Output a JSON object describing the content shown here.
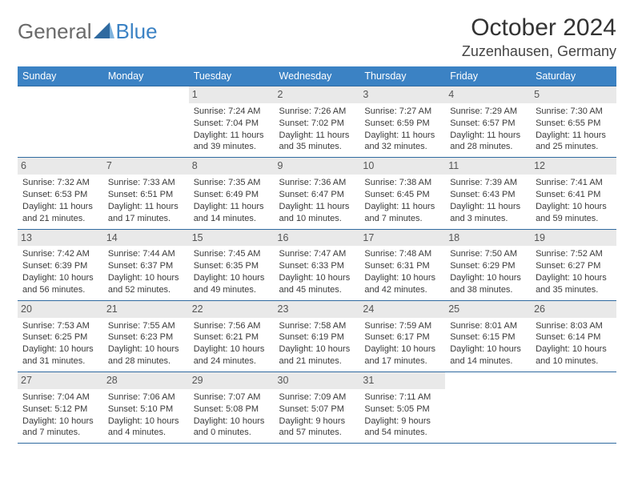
{
  "logo": {
    "text1": "General",
    "text2": "Blue"
  },
  "title": "October 2024",
  "location": "Zuzenhausen, Germany",
  "colors": {
    "header_bg": "#3b82c4",
    "header_text": "#ffffff",
    "border": "#2f6aa0",
    "daynum_bg": "#e9e9e9",
    "body_text": "#3a3a3a"
  },
  "weekdays": [
    "Sunday",
    "Monday",
    "Tuesday",
    "Wednesday",
    "Thursday",
    "Friday",
    "Saturday"
  ],
  "weeks": [
    [
      null,
      null,
      {
        "n": "1",
        "sr": "Sunrise: 7:24 AM",
        "ss": "Sunset: 7:04 PM",
        "d1": "Daylight: 11 hours",
        "d2": "and 39 minutes."
      },
      {
        "n": "2",
        "sr": "Sunrise: 7:26 AM",
        "ss": "Sunset: 7:02 PM",
        "d1": "Daylight: 11 hours",
        "d2": "and 35 minutes."
      },
      {
        "n": "3",
        "sr": "Sunrise: 7:27 AM",
        "ss": "Sunset: 6:59 PM",
        "d1": "Daylight: 11 hours",
        "d2": "and 32 minutes."
      },
      {
        "n": "4",
        "sr": "Sunrise: 7:29 AM",
        "ss": "Sunset: 6:57 PM",
        "d1": "Daylight: 11 hours",
        "d2": "and 28 minutes."
      },
      {
        "n": "5",
        "sr": "Sunrise: 7:30 AM",
        "ss": "Sunset: 6:55 PM",
        "d1": "Daylight: 11 hours",
        "d2": "and 25 minutes."
      }
    ],
    [
      {
        "n": "6",
        "sr": "Sunrise: 7:32 AM",
        "ss": "Sunset: 6:53 PM",
        "d1": "Daylight: 11 hours",
        "d2": "and 21 minutes."
      },
      {
        "n": "7",
        "sr": "Sunrise: 7:33 AM",
        "ss": "Sunset: 6:51 PM",
        "d1": "Daylight: 11 hours",
        "d2": "and 17 minutes."
      },
      {
        "n": "8",
        "sr": "Sunrise: 7:35 AM",
        "ss": "Sunset: 6:49 PM",
        "d1": "Daylight: 11 hours",
        "d2": "and 14 minutes."
      },
      {
        "n": "9",
        "sr": "Sunrise: 7:36 AM",
        "ss": "Sunset: 6:47 PM",
        "d1": "Daylight: 11 hours",
        "d2": "and 10 minutes."
      },
      {
        "n": "10",
        "sr": "Sunrise: 7:38 AM",
        "ss": "Sunset: 6:45 PM",
        "d1": "Daylight: 11 hours",
        "d2": "and 7 minutes."
      },
      {
        "n": "11",
        "sr": "Sunrise: 7:39 AM",
        "ss": "Sunset: 6:43 PM",
        "d1": "Daylight: 11 hours",
        "d2": "and 3 minutes."
      },
      {
        "n": "12",
        "sr": "Sunrise: 7:41 AM",
        "ss": "Sunset: 6:41 PM",
        "d1": "Daylight: 10 hours",
        "d2": "and 59 minutes."
      }
    ],
    [
      {
        "n": "13",
        "sr": "Sunrise: 7:42 AM",
        "ss": "Sunset: 6:39 PM",
        "d1": "Daylight: 10 hours",
        "d2": "and 56 minutes."
      },
      {
        "n": "14",
        "sr": "Sunrise: 7:44 AM",
        "ss": "Sunset: 6:37 PM",
        "d1": "Daylight: 10 hours",
        "d2": "and 52 minutes."
      },
      {
        "n": "15",
        "sr": "Sunrise: 7:45 AM",
        "ss": "Sunset: 6:35 PM",
        "d1": "Daylight: 10 hours",
        "d2": "and 49 minutes."
      },
      {
        "n": "16",
        "sr": "Sunrise: 7:47 AM",
        "ss": "Sunset: 6:33 PM",
        "d1": "Daylight: 10 hours",
        "d2": "and 45 minutes."
      },
      {
        "n": "17",
        "sr": "Sunrise: 7:48 AM",
        "ss": "Sunset: 6:31 PM",
        "d1": "Daylight: 10 hours",
        "d2": "and 42 minutes."
      },
      {
        "n": "18",
        "sr": "Sunrise: 7:50 AM",
        "ss": "Sunset: 6:29 PM",
        "d1": "Daylight: 10 hours",
        "d2": "and 38 minutes."
      },
      {
        "n": "19",
        "sr": "Sunrise: 7:52 AM",
        "ss": "Sunset: 6:27 PM",
        "d1": "Daylight: 10 hours",
        "d2": "and 35 minutes."
      }
    ],
    [
      {
        "n": "20",
        "sr": "Sunrise: 7:53 AM",
        "ss": "Sunset: 6:25 PM",
        "d1": "Daylight: 10 hours",
        "d2": "and 31 minutes."
      },
      {
        "n": "21",
        "sr": "Sunrise: 7:55 AM",
        "ss": "Sunset: 6:23 PM",
        "d1": "Daylight: 10 hours",
        "d2": "and 28 minutes."
      },
      {
        "n": "22",
        "sr": "Sunrise: 7:56 AM",
        "ss": "Sunset: 6:21 PM",
        "d1": "Daylight: 10 hours",
        "d2": "and 24 minutes."
      },
      {
        "n": "23",
        "sr": "Sunrise: 7:58 AM",
        "ss": "Sunset: 6:19 PM",
        "d1": "Daylight: 10 hours",
        "d2": "and 21 minutes."
      },
      {
        "n": "24",
        "sr": "Sunrise: 7:59 AM",
        "ss": "Sunset: 6:17 PM",
        "d1": "Daylight: 10 hours",
        "d2": "and 17 minutes."
      },
      {
        "n": "25",
        "sr": "Sunrise: 8:01 AM",
        "ss": "Sunset: 6:15 PM",
        "d1": "Daylight: 10 hours",
        "d2": "and 14 minutes."
      },
      {
        "n": "26",
        "sr": "Sunrise: 8:03 AM",
        "ss": "Sunset: 6:14 PM",
        "d1": "Daylight: 10 hours",
        "d2": "and 10 minutes."
      }
    ],
    [
      {
        "n": "27",
        "sr": "Sunrise: 7:04 AM",
        "ss": "Sunset: 5:12 PM",
        "d1": "Daylight: 10 hours",
        "d2": "and 7 minutes."
      },
      {
        "n": "28",
        "sr": "Sunrise: 7:06 AM",
        "ss": "Sunset: 5:10 PM",
        "d1": "Daylight: 10 hours",
        "d2": "and 4 minutes."
      },
      {
        "n": "29",
        "sr": "Sunrise: 7:07 AM",
        "ss": "Sunset: 5:08 PM",
        "d1": "Daylight: 10 hours",
        "d2": "and 0 minutes."
      },
      {
        "n": "30",
        "sr": "Sunrise: 7:09 AM",
        "ss": "Sunset: 5:07 PM",
        "d1": "Daylight: 9 hours",
        "d2": "and 57 minutes."
      },
      {
        "n": "31",
        "sr": "Sunrise: 7:11 AM",
        "ss": "Sunset: 5:05 PM",
        "d1": "Daylight: 9 hours",
        "d2": "and 54 minutes."
      },
      null,
      null
    ]
  ]
}
